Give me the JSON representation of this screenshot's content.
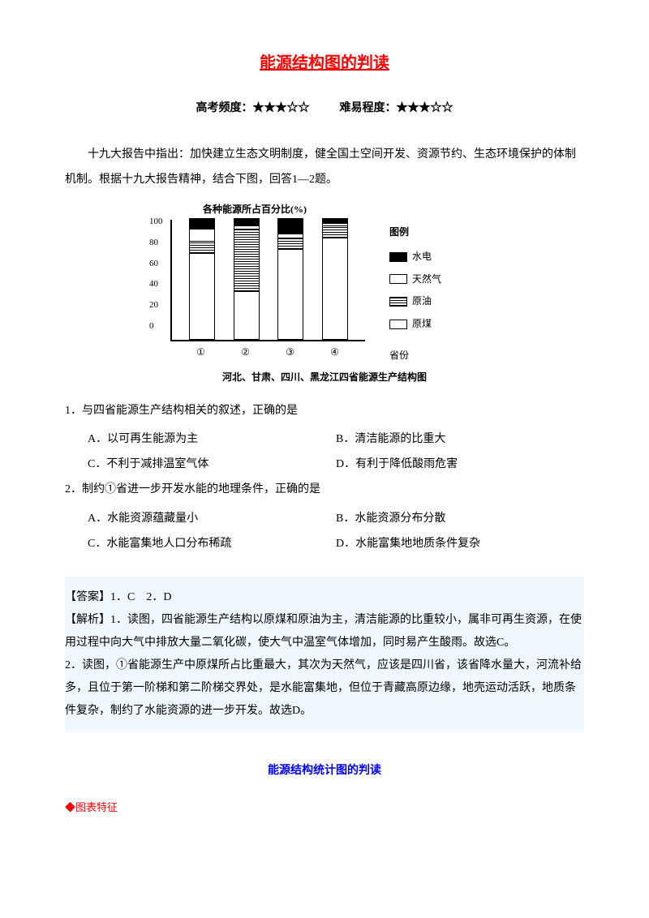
{
  "title": "能源结构图的判读",
  "meta": {
    "freq_label": "高考频度：",
    "freq_stars": "★★★☆☆",
    "diff_label": "难易程度：",
    "diff_stars": "★★★☆☆"
  },
  "intro": "十九大报告中指出：加快建立生态文明制度，健全国土空间开发、资源节约、生态环境保护的体制机制。根据十九大报告精神，结合下图，回答1—2题。",
  "chart": {
    "type": "stacked-bar",
    "ylabel": "各种能源所占百分比(%)",
    "ylim": [
      0,
      100
    ],
    "yticks": [
      "100",
      "80",
      "60",
      "40",
      "20",
      "0"
    ],
    "xaxis_label": "省份",
    "categories": [
      "①",
      "②",
      "③",
      "④"
    ],
    "series": [
      {
        "name": "水电",
        "key": "hydro"
      },
      {
        "name": "天然气",
        "key": "gas"
      },
      {
        "name": "原油",
        "key": "oil"
      },
      {
        "name": "原煤",
        "key": "coal"
      }
    ],
    "data": [
      {
        "hydro": 8,
        "gas": 10,
        "oil": 10,
        "coal": 72,
        "total": 100
      },
      {
        "hydro": 5,
        "gas": 3,
        "oil": 52,
        "coal": 40,
        "total": 100
      },
      {
        "hydro": 12,
        "gas": 3,
        "oil": 10,
        "coal": 75,
        "total": 100
      },
      {
        "hydro": 3,
        "gas": 2,
        "oil": 10,
        "coal": 85,
        "total": 100
      }
    ],
    "legend_title": "图例",
    "caption": "河北、甘肃、四川、黑龙江四省能源生产结构图",
    "colors": {
      "axis": "#000000",
      "bg": "#ffffff"
    }
  },
  "questions": [
    {
      "stem": "1．与四省能源生产结构相关的叙述，正确的是",
      "options": [
        "A．以可再生能源为主",
        "B．清洁能源的比重大",
        "C．不利于减排温室气体",
        "D．有利于降低酸雨危害"
      ]
    },
    {
      "stem": "2．制约①省进一步开发水能的地理条件，正确的是",
      "options": [
        "A．水能资源蕴藏量小",
        "B．水能资源分布分散",
        "C．水能富集地人口分布稀疏",
        "D．水能富集地地质条件复杂"
      ]
    }
  ],
  "answer": {
    "line": "【答案】1．C　2．D",
    "analysis": [
      "【解析】1．读图，四省能源生产结构以原煤和原油为主，清洁能源的比重较小，属非可再生资源，在使用过程中向大气中排放大量二氧化碳，使大气中温室气体增加，同时易产生酸雨。故选C。",
      "2．读图，①省能源生产中原煤所占比重最大，其次为天然气，应该是四川省，该省降水量大，河流补给多，且位于第一阶梯和第二阶梯交界处，是水能富集地，但位于青藏高原边缘，地壳运动活跃，地质条件复杂，制约了水能资源的进一步开发。故选D。"
    ]
  },
  "sub_title": "能源结构统计图的判读",
  "section_marker": "图表特征"
}
